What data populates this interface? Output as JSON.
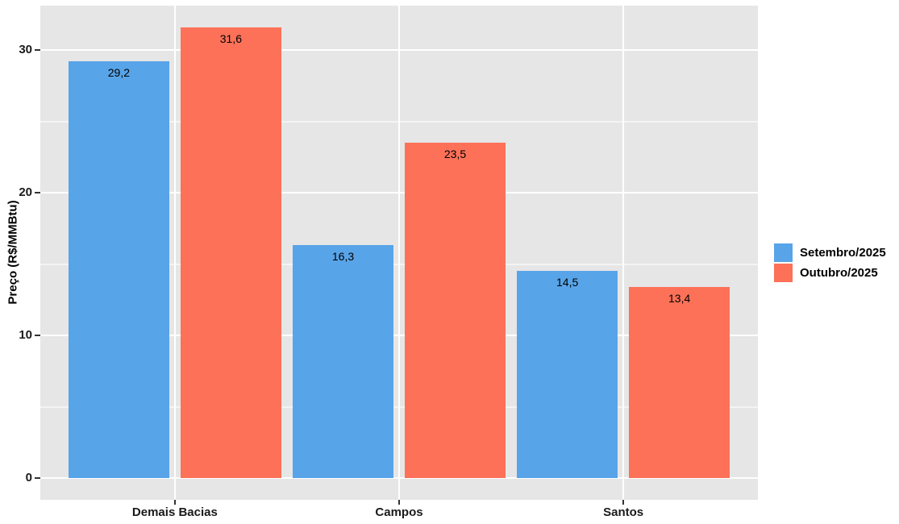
{
  "chart_data": {
    "type": "bar",
    "title": "",
    "xlabel": "",
    "ylabel": "Preço (R$/MMBtu)",
    "categories": [
      "Demais Bacias",
      "Campos",
      "Santos"
    ],
    "series": [
      {
        "name": "Setembro/2025",
        "color": "#58A4E8",
        "values": [
          29.2,
          16.3,
          14.5
        ],
        "value_labels": [
          "29,2",
          "16,3",
          "14,5"
        ]
      },
      {
        "name": "Outubro/2025",
        "color": "#FC7158",
        "values": [
          31.6,
          23.5,
          13.4
        ],
        "value_labels": [
          "31,6",
          "23,5",
          "13,4"
        ]
      }
    ],
    "y_axis": {
      "tick_values": [
        0,
        10,
        20,
        30
      ],
      "tick_labels": [
        "0",
        "10",
        "20",
        "30"
      ],
      "minor_tick_values": [
        5,
        15,
        25
      ],
      "range": [
        -1.6,
        33.1
      ]
    },
    "legend_position": "right",
    "grid": "white major and minor gridlines on gray panel",
    "panel_background": "#E6E6E6",
    "gridline_color": "#FFFFFF",
    "decimal_separator": ","
  }
}
